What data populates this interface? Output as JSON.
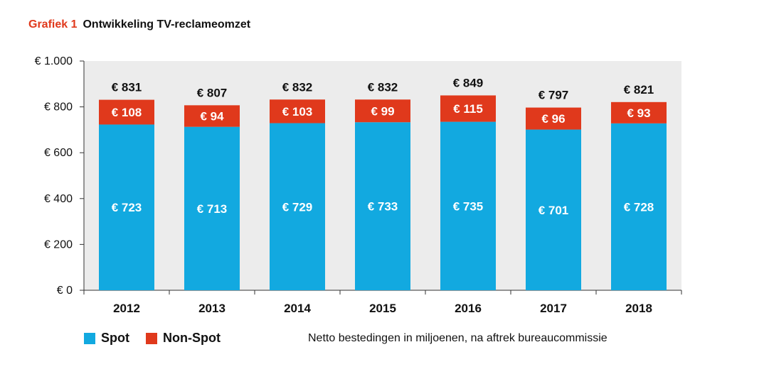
{
  "title": {
    "prefix": "Grafiek 1",
    "text": "Ontwikkeling TV-reclameomzet"
  },
  "note": "Netto bestedingen in miljoenen, na aftrek bureaucommissie",
  "colors": {
    "spot": "#12a9e0",
    "nonspot": "#e0391c",
    "plot_bg": "#ececec",
    "title_accent": "#e0391c"
  },
  "chart_data": {
    "type": "bar",
    "stacked": true,
    "categories": [
      "2012",
      "2013",
      "2014",
      "2015",
      "2016",
      "2017",
      "2018"
    ],
    "series": [
      {
        "name": "Spot",
        "values": [
          723,
          713,
          729,
          733,
          735,
          701,
          728
        ],
        "labels": [
          "€ 723",
          "€ 713",
          "€ 729",
          "€ 733",
          "€ 735",
          "€ 701",
          "€ 728"
        ]
      },
      {
        "name": "Non-Spot",
        "values": [
          108,
          94,
          103,
          99,
          115,
          96,
          93
        ],
        "labels": [
          "€ 108",
          "€ 94",
          "€ 103",
          "€ 99",
          "€ 115",
          "€ 96",
          "€ 93"
        ]
      }
    ],
    "totals": [
      "€ 831",
      "€ 807",
      "€ 832",
      "€ 832",
      "€ 849",
      "€ 797",
      "€ 821"
    ],
    "total_values": [
      831,
      807,
      832,
      832,
      849,
      797,
      821
    ],
    "yticks": [
      {
        "value": 0,
        "label": "€ 0"
      },
      {
        "value": 200,
        "label": "€ 200"
      },
      {
        "value": 400,
        "label": "€ 400"
      },
      {
        "value": 600,
        "label": "€ 600"
      },
      {
        "value": 800,
        "label": "€ 800"
      },
      {
        "value": 1000,
        "label": "€ 1.000"
      }
    ],
    "ylim": [
      0,
      1000
    ],
    "grid": false,
    "legend": "bottom-left"
  }
}
